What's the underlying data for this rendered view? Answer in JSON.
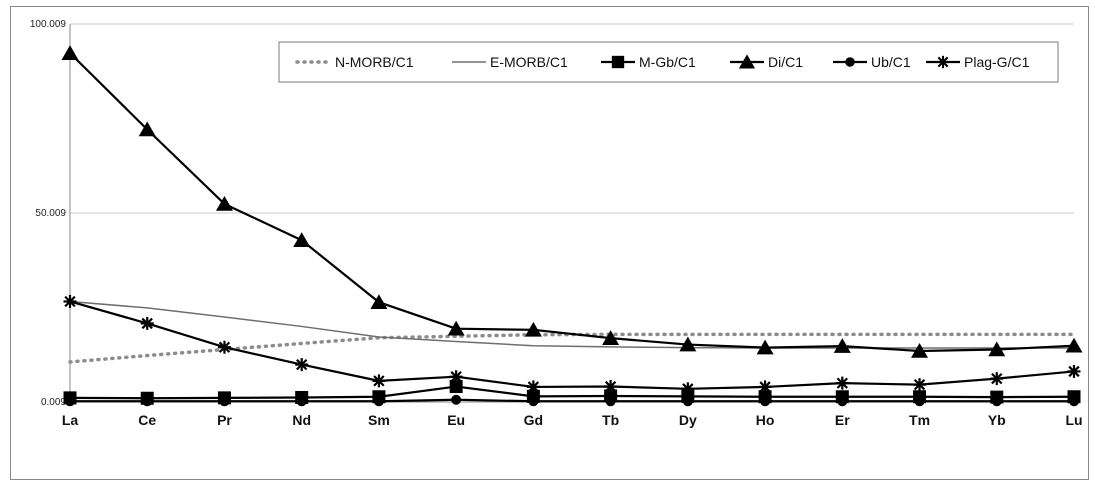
{
  "chart_data": {
    "type": "line",
    "title": "",
    "xlabel": "",
    "ylabel": "",
    "categories": [
      "La",
      "Ce",
      "Pr",
      "Nd",
      "Sm",
      "Eu",
      "Gd",
      "Tb",
      "Dy",
      "Ho",
      "Er",
      "Tm",
      "Yb",
      "Lu"
    ],
    "y_ticks": [
      "0.009",
      "50.009",
      "100.009"
    ],
    "ylim": [
      0.009,
      100.009
    ],
    "grid": "horizontal",
    "legend_position": "top-right",
    "series": [
      {
        "name": "N-MORB/C1",
        "style": "dotted",
        "color": "#8c8c8c",
        "marker": "none",
        "values": [
          10.6,
          12.3,
          13.9,
          15.5,
          17.0,
          17.4,
          17.8,
          17.9,
          17.9,
          17.9,
          17.9,
          17.9,
          17.9,
          17.9
        ]
      },
      {
        "name": "E-MORB/C1",
        "style": "solid-thin",
        "color": "#666666",
        "marker": "none",
        "values": [
          26.6,
          24.9,
          22.5,
          20.0,
          17.2,
          16.0,
          14.9,
          14.6,
          14.4,
          14.3,
          14.3,
          14.3,
          14.3,
          14.3
        ]
      },
      {
        "name": "M-Gb/C1",
        "style": "solid",
        "color": "#000000",
        "marker": "square",
        "values": [
          1.1,
          1.0,
          1.1,
          1.2,
          1.4,
          4.1,
          1.5,
          1.6,
          1.5,
          1.4,
          1.4,
          1.4,
          1.3,
          1.4
        ]
      },
      {
        "name": "Di/C1",
        "style": "solid",
        "color": "#000000",
        "marker": "triangle",
        "values": [
          92.3,
          72.1,
          52.4,
          42.8,
          26.4,
          19.4,
          19.1,
          16.9,
          15.2,
          14.4,
          14.8,
          13.5,
          13.9,
          14.9
        ]
      },
      {
        "name": "Ub/C1",
        "style": "solid",
        "color": "#000000",
        "marker": "circle",
        "values": [
          0.2,
          0.2,
          0.2,
          0.2,
          0.2,
          0.6,
          0.2,
          0.2,
          0.2,
          0.2,
          0.2,
          0.2,
          0.2,
          0.2
        ]
      },
      {
        "name": "Plag-G/C1",
        "style": "solid",
        "color": "#000000",
        "marker": "star",
        "values": [
          26.6,
          20.8,
          14.5,
          9.9,
          5.6,
          6.7,
          4.0,
          4.1,
          3.5,
          4.0,
          5.0,
          4.6,
          6.2,
          8.1
        ]
      }
    ]
  },
  "legend": {
    "items": [
      {
        "label": "N-MORB/C1",
        "line": "dotted",
        "marker": "none"
      },
      {
        "label": "E-MORB/C1",
        "line": "thin",
        "marker": "none"
      },
      {
        "label": "M-Gb/C1",
        "line": "solid",
        "marker": "square"
      },
      {
        "label": "Di/C1",
        "line": "solid",
        "marker": "triangle"
      },
      {
        "label": "Ub/C1",
        "line": "solid",
        "marker": "circle"
      },
      {
        "label": "Plag-G/C1",
        "line": "solid",
        "marker": "star"
      }
    ]
  }
}
